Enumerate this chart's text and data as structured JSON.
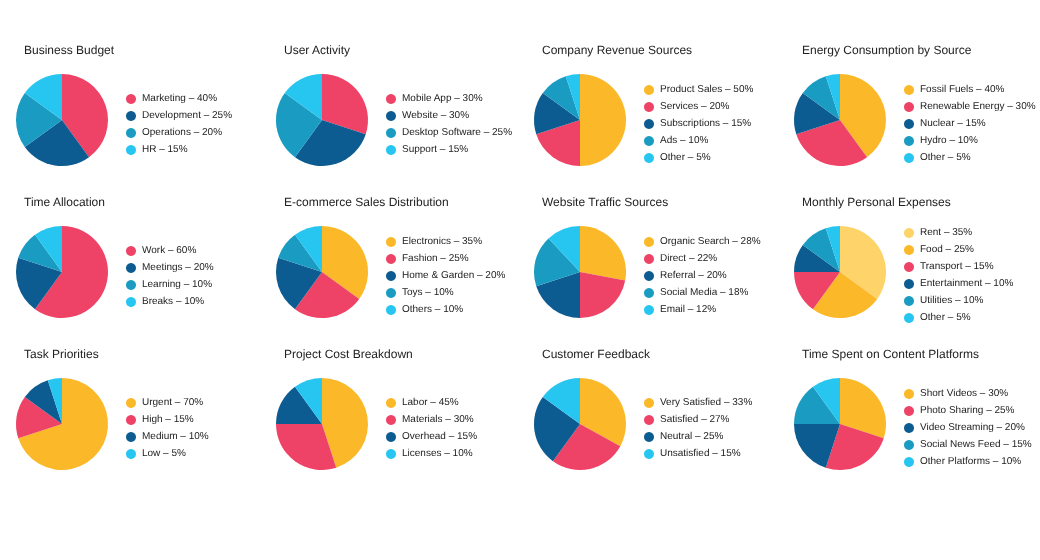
{
  "chart_data": [
    {
      "type": "pie",
      "title": "Business Budget",
      "legend": "right",
      "categories": [
        "Marketing – 40%",
        "Development – 25%",
        "Operations – 20%",
        "HR – 15%"
      ],
      "values": [
        40,
        25,
        20,
        15
      ],
      "colors": [
        "#ee4266",
        "#0d5c91",
        "#1a9bc2",
        "#27c6f0"
      ]
    },
    {
      "type": "pie",
      "title": "User Activity",
      "legend": "right",
      "categories": [
        "Mobile App – 30%",
        "Website – 30%",
        "Desktop Software – 25%",
        "Support – 15%"
      ],
      "values": [
        30,
        30,
        25,
        15
      ],
      "colors": [
        "#ee4266",
        "#0d5c91",
        "#1a9bc2",
        "#27c6f0"
      ]
    },
    {
      "type": "pie",
      "title": "Company Revenue Sources",
      "legend": "right",
      "categories": [
        "Product Sales – 50%",
        "Services – 20%",
        "Subscriptions – 15%",
        "Ads – 10%",
        "Other – 5%"
      ],
      "values": [
        50,
        20,
        15,
        10,
        5
      ],
      "colors": [
        "#fbb829",
        "#ee4266",
        "#0d5c91",
        "#1a9bc2",
        "#27c6f0"
      ]
    },
    {
      "type": "pie",
      "title": "Energy Consumption by Source",
      "legend": "right",
      "categories": [
        "Fossil Fuels – 40%",
        "Renewable Energy – 30%",
        "Nuclear – 15%",
        "Hydro – 10%",
        "Other – 5%"
      ],
      "values": [
        40,
        30,
        15,
        10,
        5
      ],
      "colors": [
        "#fbb829",
        "#ee4266",
        "#0d5c91",
        "#1a9bc2",
        "#27c6f0"
      ]
    },
    {
      "type": "pie",
      "title": "Time Allocation",
      "legend": "right",
      "categories": [
        "Work – 60%",
        "Meetings – 20%",
        "Learning – 10%",
        "Breaks – 10%"
      ],
      "values": [
        60,
        20,
        10,
        10
      ],
      "colors": [
        "#ee4266",
        "#0d5c91",
        "#1a9bc2",
        "#27c6f0"
      ]
    },
    {
      "type": "pie",
      "title": "E-commerce Sales Distribution",
      "legend": "right",
      "categories": [
        "Electronics – 35%",
        "Fashion – 25%",
        "Home & Garden – 20%",
        "Toys – 10%",
        "Others – 10%"
      ],
      "values": [
        35,
        25,
        20,
        10,
        10
      ],
      "colors": [
        "#fbb829",
        "#ee4266",
        "#0d5c91",
        "#1a9bc2",
        "#27c6f0"
      ]
    },
    {
      "type": "pie",
      "title": "Website Traffic Sources",
      "legend": "right",
      "categories": [
        "Organic Search – 28%",
        "Direct – 22%",
        "Referral – 20%",
        "Social Media – 18%",
        "Email – 12%"
      ],
      "values": [
        28,
        22,
        20,
        18,
        12
      ],
      "colors": [
        "#fbb829",
        "#ee4266",
        "#0d5c91",
        "#1a9bc2",
        "#27c6f0"
      ]
    },
    {
      "type": "pie",
      "title": "Monthly Personal Expenses",
      "legend": "right",
      "categories": [
        "Rent – 35%",
        "Food – 25%",
        "Transport – 15%",
        "Entertainment – 10%",
        "Utilities – 10%",
        "Other – 5%"
      ],
      "values": [
        35,
        25,
        15,
        10,
        10,
        5
      ],
      "colors": [
        "#fdd36a",
        "#fbb829",
        "#ee4266",
        "#0d5c91",
        "#1a9bc2",
        "#27c6f0"
      ]
    },
    {
      "type": "pie",
      "title": "Task Priorities",
      "legend": "right",
      "categories": [
        "Urgent – 70%",
        "High – 15%",
        "Medium – 10%",
        "Low – 5%"
      ],
      "values": [
        70,
        15,
        10,
        5
      ],
      "colors": [
        "#fbb829",
        "#ee4266",
        "#0d5c91",
        "#27c6f0"
      ]
    },
    {
      "type": "pie",
      "title": "Project Cost Breakdown",
      "legend": "right",
      "categories": [
        "Labor – 45%",
        "Materials – 30%",
        "Overhead – 15%",
        "Licenses – 10%"
      ],
      "values": [
        45,
        30,
        15,
        10
      ],
      "colors": [
        "#fbb829",
        "#ee4266",
        "#0d5c91",
        "#27c6f0"
      ]
    },
    {
      "type": "pie",
      "title": "Customer Feedback",
      "legend": "right",
      "categories": [
        "Very Satisfied – 33%",
        "Satisfied – 27%",
        "Neutral – 25%",
        "Unsatisfied – 15%"
      ],
      "values": [
        33,
        27,
        25,
        15
      ],
      "colors": [
        "#fbb829",
        "#ee4266",
        "#0d5c91",
        "#27c6f0"
      ]
    },
    {
      "type": "pie",
      "title": "Time Spent on Content Platforms",
      "legend": "right",
      "categories": [
        "Short Videos – 30%",
        "Photo Sharing – 25%",
        "Video Streaming – 20%",
        "Social News Feed – 15%",
        "Other Platforms – 10%"
      ],
      "values": [
        30,
        25,
        20,
        15,
        10
      ],
      "colors": [
        "#fbb829",
        "#ee4266",
        "#0d5c91",
        "#1a9bc2",
        "#27c6f0"
      ]
    }
  ]
}
